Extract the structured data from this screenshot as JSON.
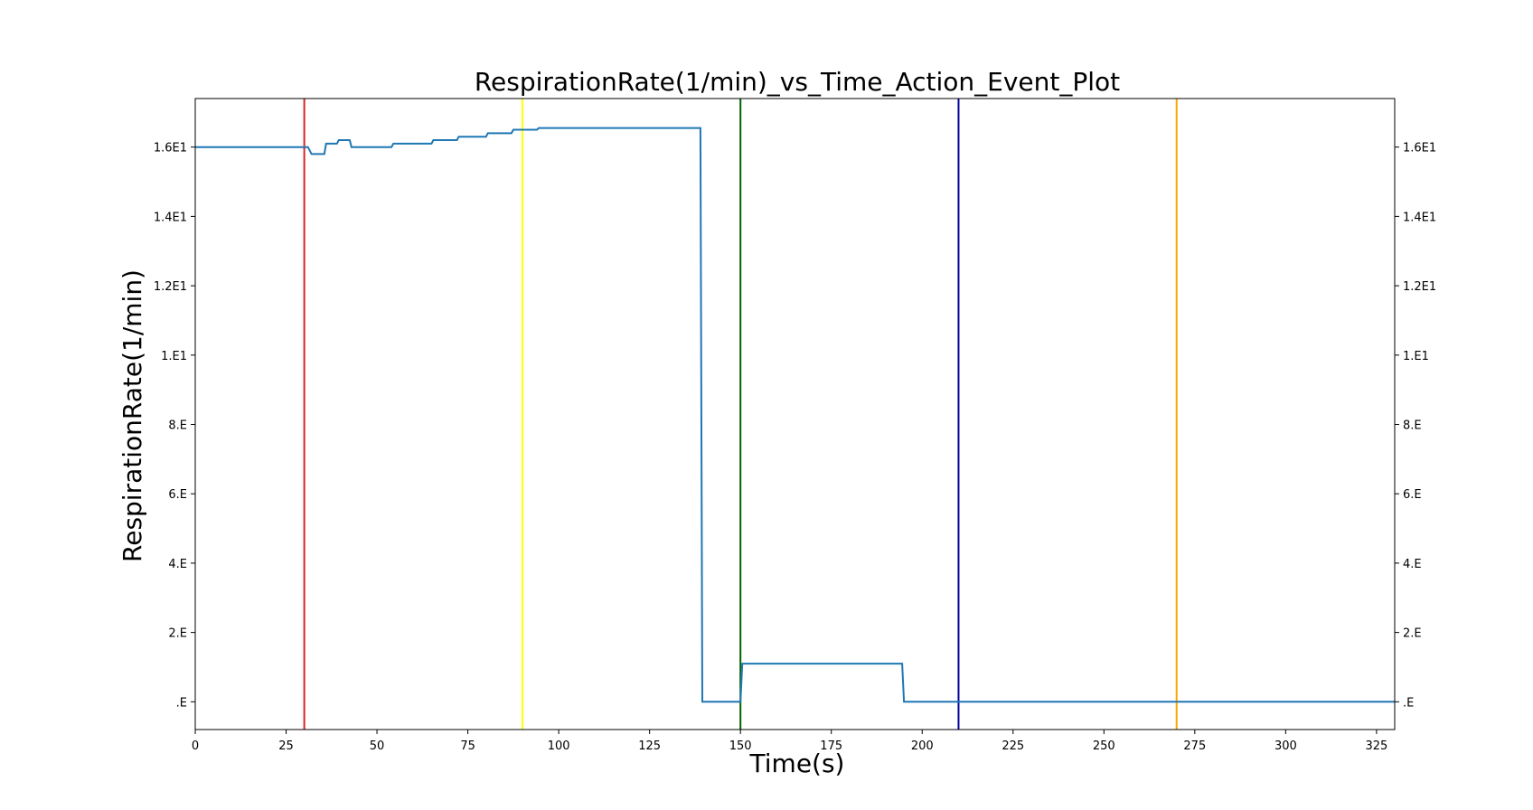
{
  "chart_data": {
    "type": "line",
    "title": "RespirationRate(1/min)_vs_Time_Action_Event_Plot",
    "xlabel": "Time(s)",
    "ylabel": "RespirationRate(1/min)",
    "xlim": [
      0,
      330
    ],
    "ylim": [
      -0.8,
      17.4
    ],
    "grid": false,
    "x_ticks": [
      {
        "value": 0,
        "label": "0"
      },
      {
        "value": 25,
        "label": "25"
      },
      {
        "value": 50,
        "label": "50"
      },
      {
        "value": 75,
        "label": "75"
      },
      {
        "value": 100,
        "label": "100"
      },
      {
        "value": 125,
        "label": "125"
      },
      {
        "value": 150,
        "label": "150"
      },
      {
        "value": 175,
        "label": "175"
      },
      {
        "value": 200,
        "label": "200"
      },
      {
        "value": 225,
        "label": "225"
      },
      {
        "value": 250,
        "label": "250"
      },
      {
        "value": 275,
        "label": "275"
      },
      {
        "value": 300,
        "label": "300"
      },
      {
        "value": 325,
        "label": "325"
      }
    ],
    "y_ticks": [
      {
        "value": 0,
        "label": ".E"
      },
      {
        "value": 2,
        "label": "2.E"
      },
      {
        "value": 4,
        "label": "4.E"
      },
      {
        "value": 6,
        "label": "6.E"
      },
      {
        "value": 8,
        "label": "8.E"
      },
      {
        "value": 10,
        "label": "1.E1"
      },
      {
        "value": 12,
        "label": "1.2E1"
      },
      {
        "value": 14,
        "label": "1.4E1"
      },
      {
        "value": 16,
        "label": "1.6E1"
      }
    ],
    "series": [
      {
        "color": "#1f77b4",
        "x": [
          0,
          31,
          32,
          35.5,
          36,
          39,
          39.5,
          42.5,
          43,
          54,
          54.5,
          65,
          65.5,
          72,
          72.5,
          80,
          80.5,
          87,
          87.5,
          94,
          94.5,
          139,
          139.5,
          150,
          150.5,
          194.5,
          195,
          330
        ],
        "y": [
          16.0,
          16.0,
          15.8,
          15.8,
          16.1,
          16.1,
          16.2,
          16.2,
          16.0,
          16.0,
          16.1,
          16.1,
          16.2,
          16.2,
          16.3,
          16.3,
          16.4,
          16.4,
          16.5,
          16.5,
          16.55,
          16.55,
          0.0,
          0.0,
          1.1,
          1.1,
          0.0,
          0.0
        ]
      }
    ],
    "event_lines": [
      {
        "x": 30,
        "color": "#d62728"
      },
      {
        "x": 90,
        "color": "#ffff00"
      },
      {
        "x": 150,
        "color": "#006400"
      },
      {
        "x": 210,
        "color": "#0000a0"
      },
      {
        "x": 270,
        "color": "#ffa500"
      }
    ]
  }
}
